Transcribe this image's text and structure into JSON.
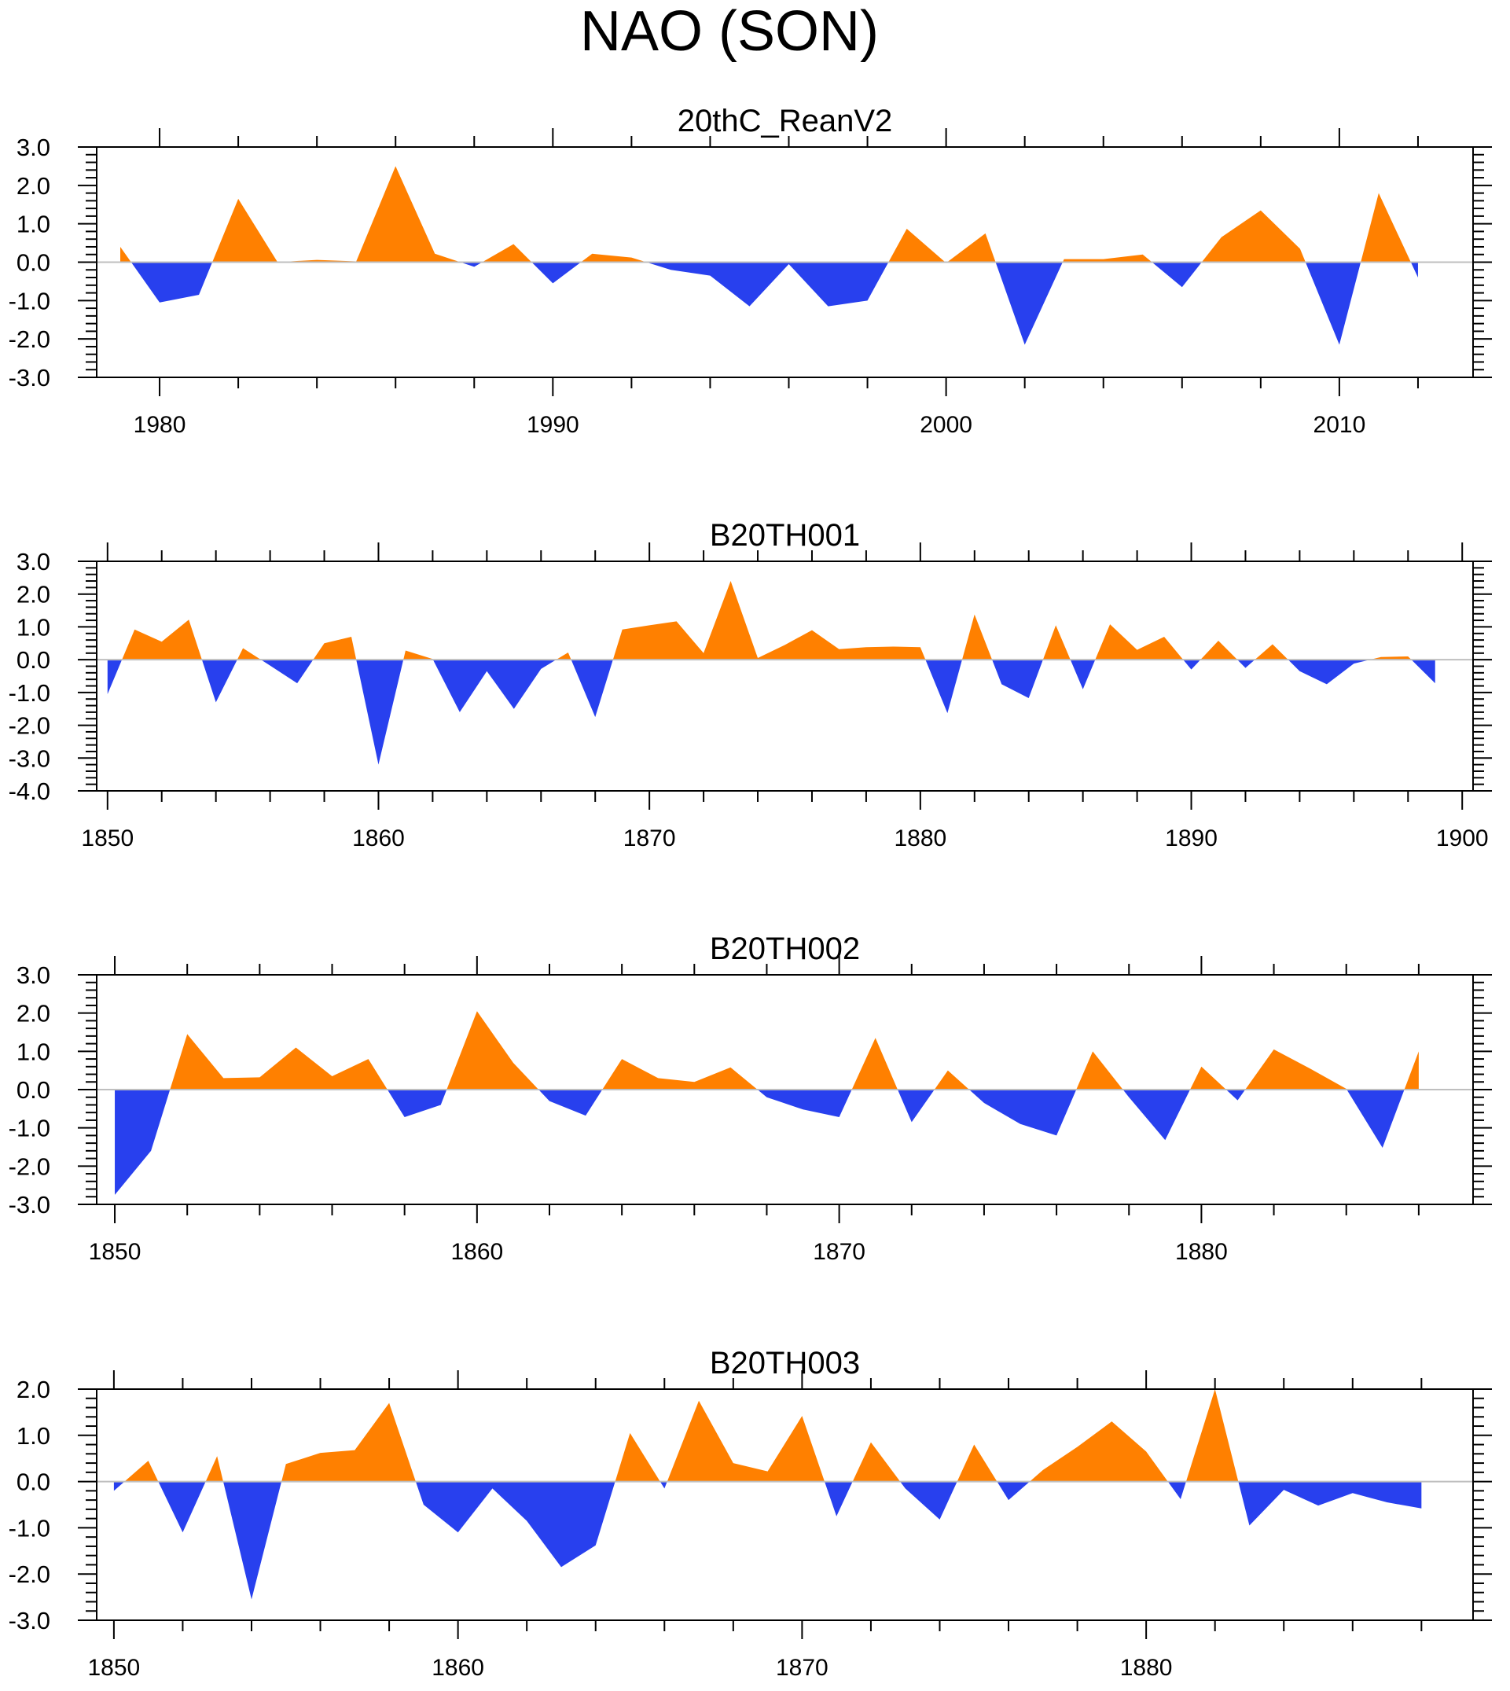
{
  "title": "NAO (SON)",
  "colors": {
    "positive": "#ff8000",
    "negative": "#2840ee",
    "axis": "#000000",
    "zero_line": "#bfbfbf"
  },
  "chart_data": [
    {
      "type": "area",
      "title": "20thC_ReanV2",
      "x": [
        1979,
        1980,
        1981,
        1982,
        1983,
        1984,
        1985,
        1986,
        1987,
        1988,
        1989,
        1990,
        1991,
        1992,
        1993,
        1994,
        1995,
        1996,
        1997,
        1998,
        1999,
        2000,
        2001,
        2002,
        2003,
        2004,
        2005,
        2006,
        2007,
        2008,
        2009,
        2010,
        2011,
        2012
      ],
      "values": [
        0.4,
        -1.05,
        -0.85,
        1.65,
        0.0,
        0.06,
        0.02,
        2.5,
        0.22,
        -0.12,
        0.47,
        -0.55,
        0.22,
        0.12,
        -0.2,
        -0.35,
        -1.15,
        -0.05,
        -1.15,
        -1.0,
        0.87,
        -0.02,
        0.75,
        -2.15,
        0.08,
        0.08,
        0.2,
        -0.65,
        0.65,
        1.35,
        0.35,
        -2.15,
        1.8,
        -0.4
      ],
      "xlim": [
        1978.4,
        2013.4
      ],
      "ylim": [
        -3.0,
        3.0
      ],
      "xticks": [
        1980,
        1990,
        2000,
        2010
      ],
      "xtick_labels": [
        "1980",
        "1990",
        "2000",
        "2010"
      ],
      "yticks": [
        3.0,
        2.0,
        1.0,
        0.0,
        -1.0,
        -2.0,
        -3.0
      ],
      "ytick_labels": [
        "3.0",
        "2.0",
        "1.0",
        "0.0",
        "-1.0",
        "-2.0",
        "-3.0"
      ]
    },
    {
      "type": "area",
      "title": "B20TH001",
      "x": [
        1850,
        1851,
        1852,
        1853,
        1854,
        1855,
        1856,
        1857,
        1858,
        1859,
        1860,
        1861,
        1862,
        1863,
        1864,
        1865,
        1866,
        1867,
        1868,
        1869,
        1870,
        1871,
        1872,
        1873,
        1874,
        1875,
        1876,
        1877,
        1878,
        1879,
        1880,
        1881,
        1882,
        1883,
        1884,
        1885,
        1886,
        1887,
        1888,
        1889,
        1890,
        1891,
        1892,
        1893,
        1894,
        1895,
        1896,
        1897,
        1898,
        1899
      ],
      "values": [
        -1.05,
        0.92,
        0.55,
        1.22,
        -1.3,
        0.35,
        -0.18,
        -0.72,
        0.5,
        0.7,
        -3.2,
        0.28,
        0.02,
        -1.6,
        -0.35,
        -1.5,
        -0.28,
        0.22,
        -1.75,
        0.92,
        1.05,
        1.17,
        0.2,
        2.4,
        0.05,
        0.45,
        0.9,
        0.32,
        0.38,
        0.4,
        0.38,
        -1.63,
        1.38,
        -0.75,
        -1.17,
        1.05,
        -0.9,
        1.08,
        0.3,
        0.7,
        -0.3,
        0.58,
        -0.25,
        0.47,
        -0.35,
        -0.75,
        -0.12,
        0.08,
        0.1,
        -0.72
      ],
      "xlim": [
        1849.6,
        1900.4
      ],
      "ylim": [
        -4.0,
        3.0
      ],
      "xticks": [
        1850,
        1860,
        1870,
        1880,
        1890,
        1900
      ],
      "xtick_labels": [
        "1850",
        "1860",
        "1870",
        "1880",
        "1890",
        "1900"
      ],
      "yticks": [
        3.0,
        2.0,
        1.0,
        0.0,
        -1.0,
        -2.0,
        -3.0,
        -4.0
      ],
      "ytick_labels": [
        "3.0",
        "2.0",
        "1.0",
        "0.0",
        "-1.0",
        "-2.0",
        "-3.0",
        "-4.0"
      ]
    },
    {
      "type": "area",
      "title": "B20TH002",
      "x": [
        1850,
        1851,
        1852,
        1853,
        1854,
        1855,
        1856,
        1857,
        1858,
        1859,
        1860,
        1861,
        1862,
        1863,
        1864,
        1865,
        1866,
        1867,
        1868,
        1869,
        1870,
        1871,
        1872,
        1873,
        1874,
        1875,
        1876,
        1877,
        1878,
        1879,
        1880,
        1881,
        1882,
        1883,
        1884,
        1885,
        1886
      ],
      "values": [
        -2.75,
        -1.6,
        1.45,
        0.3,
        0.32,
        1.1,
        0.35,
        0.8,
        -0.72,
        -0.4,
        2.05,
        0.7,
        -0.3,
        -0.68,
        0.8,
        0.3,
        0.2,
        0.58,
        -0.2,
        -0.52,
        -0.72,
        1.35,
        -0.85,
        0.5,
        -0.35,
        -0.9,
        -1.2,
        1.0,
        -0.2,
        -1.32,
        0.6,
        -0.28,
        1.05,
        0.55,
        0.02,
        -1.52,
        1.0
      ],
      "xlim": [
        1849.5,
        1887.5
      ],
      "ylim": [
        -3.0,
        3.0
      ],
      "xticks": [
        1850,
        1860,
        1870,
        1880
      ],
      "xtick_labels": [
        "1850",
        "1860",
        "1870",
        "1880"
      ],
      "yticks": [
        3.0,
        2.0,
        1.0,
        0.0,
        -1.0,
        -2.0,
        -3.0
      ],
      "ytick_labels": [
        "3.0",
        "2.0",
        "1.0",
        "0.0",
        "-1.0",
        "-2.0",
        "-3.0"
      ]
    },
    {
      "type": "area",
      "title": "B20TH003",
      "x": [
        1850,
        1851,
        1852,
        1853,
        1854,
        1855,
        1856,
        1857,
        1858,
        1859,
        1860,
        1861,
        1862,
        1863,
        1864,
        1865,
        1866,
        1867,
        1868,
        1869,
        1870,
        1871,
        1872,
        1873,
        1874,
        1875,
        1876,
        1877,
        1878,
        1879,
        1880,
        1881,
        1882,
        1883,
        1884,
        1885,
        1886,
        1887,
        1888
      ],
      "values": [
        -0.2,
        0.45,
        -1.1,
        0.55,
        -2.55,
        0.38,
        0.62,
        0.68,
        1.7,
        -0.5,
        -1.1,
        -0.15,
        -0.85,
        -1.85,
        -1.38,
        1.05,
        -0.15,
        1.75,
        0.4,
        0.22,
        1.42,
        -0.75,
        0.85,
        -0.15,
        -0.82,
        0.8,
        -0.4,
        0.25,
        0.75,
        1.3,
        0.65,
        -0.38,
        2.0,
        -0.95,
        -0.18,
        -0.52,
        -0.25,
        -0.45,
        -0.58
      ],
      "xlim": [
        1849.5,
        1889.5
      ],
      "ylim": [
        -3.0,
        2.0
      ],
      "xticks": [
        1850,
        1860,
        1870,
        1880
      ],
      "xtick_labels": [
        "1850",
        "1860",
        "1870",
        "1880"
      ],
      "yticks": [
        2.0,
        1.0,
        0.0,
        -1.0,
        -2.0,
        -3.0
      ],
      "ytick_labels": [
        "2.0",
        "1.0",
        "0.0",
        "-1.0",
        "-2.0",
        "-3.0"
      ]
    }
  ]
}
